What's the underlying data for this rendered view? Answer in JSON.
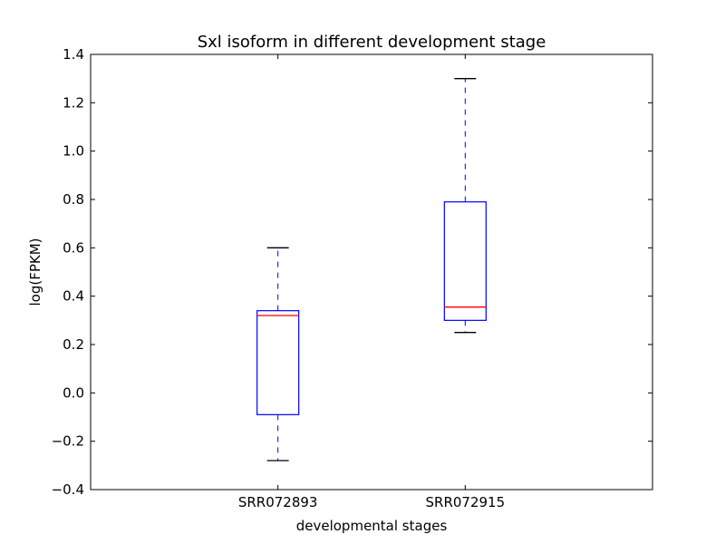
{
  "chart_data": {
    "type": "box",
    "title": "Sxl isoform in different development stage",
    "xlabel": "developmental stages",
    "ylabel": "log(FPKM)",
    "ylim": [
      -0.4,
      1.4
    ],
    "yticks": [
      "−0.4",
      "−0.2",
      "0.0",
      "0.2",
      "0.4",
      "0.6",
      "0.8",
      "1.0",
      "1.2",
      "1.4"
    ],
    "categories": [
      "SRR072893",
      "SRR072915"
    ],
    "boxes": [
      {
        "name": "SRR072893",
        "whisker_low": -0.28,
        "q1": -0.09,
        "median": 0.32,
        "q3": 0.34,
        "whisker_high": 0.6
      },
      {
        "name": "SRR072915",
        "whisker_low": 0.25,
        "q1": 0.3,
        "median": 0.355,
        "q3": 0.79,
        "whisker_high": 1.3
      }
    ],
    "colors": {
      "box": "#0000ff",
      "median": "#ff0000",
      "cap": "#000000",
      "whisker": "#0000ff"
    },
    "grid": false
  }
}
